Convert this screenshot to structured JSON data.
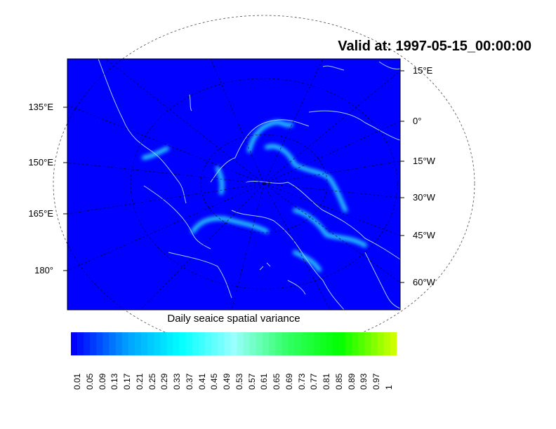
{
  "title": "Valid at: 1997-05-15_00:00:00",
  "left_labels": [
    {
      "text": "135°E"
    },
    {
      "text": "150°E"
    },
    {
      "text": "165°E"
    },
    {
      "text": "180°"
    }
  ],
  "right_labels": [
    {
      "text": "15°E"
    },
    {
      "text": "0°"
    },
    {
      "text": "15°W"
    },
    {
      "text": "30°W"
    },
    {
      "text": "45°W"
    },
    {
      "text": "60°W"
    }
  ],
  "colorbar": {
    "title": "Daily seaice spatial variance",
    "labels": [
      "0.01",
      "0.05",
      "0.09",
      "0.13",
      "0.17",
      "0.21",
      "0.25",
      "0.29",
      "0.33",
      "0.37",
      "0.41",
      "0.45",
      "0.49",
      "0.53",
      "0.57",
      "0.61",
      "0.65",
      "0.69",
      "0.73",
      "0.77",
      "0.81",
      "0.85",
      "0.89",
      "0.93",
      "0.97",
      "1"
    ],
    "color_stops": [
      "#0000ff",
      "#00a0ff",
      "#00ffff",
      "#99ffff",
      "#33ff66",
      "#00ff00",
      "#ccff00"
    ]
  },
  "colors": {
    "background": "#0000ff",
    "coastline": "#99ccff",
    "ice_edge": "#00ffff"
  }
}
